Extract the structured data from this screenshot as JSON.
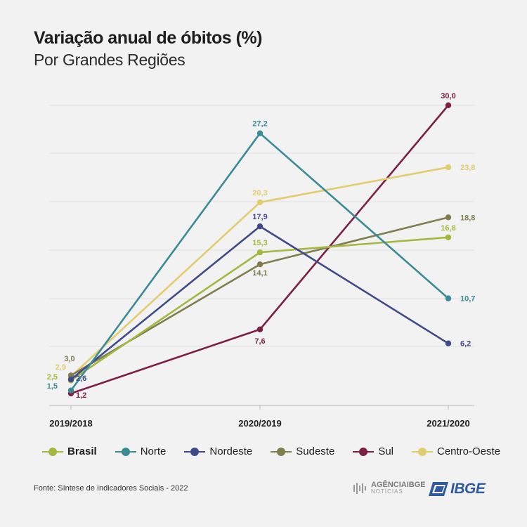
{
  "header": {
    "title": "Variação anual de óbitos (%)",
    "subtitle": "Por Grandes Regiões"
  },
  "chart_data": {
    "type": "line",
    "title": "Variação anual de óbitos (%)",
    "subtitle": "Por Grandes Regiões",
    "categories": [
      "2019/2018",
      "2020/2019",
      "2021/2020"
    ],
    "ylim": [
      0,
      31
    ],
    "grid": true,
    "legend_position": "bottom",
    "series": [
      {
        "name": "Brasil",
        "color": "#a3b83e",
        "values": [
          2.5,
          15.3,
          16.8
        ],
        "labels": [
          "2,5",
          "15,3",
          "16,8"
        ]
      },
      {
        "name": "Norte",
        "color": "#3a8b96",
        "values": [
          1.5,
          27.2,
          10.7
        ],
        "labels": [
          "1,5",
          "27,2",
          "10,7"
        ]
      },
      {
        "name": "Nordeste",
        "color": "#3f4a8a",
        "values": [
          2.6,
          17.9,
          6.2
        ],
        "labels": [
          "2,6",
          "17,9",
          "6,2"
        ]
      },
      {
        "name": "Sudeste",
        "color": "#807e4e",
        "values": [
          3.0,
          14.1,
          18.8
        ],
        "labels": [
          "3,0",
          "14,1",
          "18,8"
        ]
      },
      {
        "name": "Sul",
        "color": "#7d1f45",
        "values": [
          1.2,
          7.6,
          30.0
        ],
        "labels": [
          "1,2",
          "7,6",
          "30,0"
        ]
      },
      {
        "name": "Centro-Oeste",
        "color": "#e2cd6e",
        "values": [
          2.9,
          20.3,
          23.8
        ],
        "labels": [
          "2,9",
          "20,3",
          "23,8"
        ]
      }
    ]
  },
  "footer": {
    "source": "Fonte: Síntese de Indicadores Sociais - 2022",
    "agencia_line1_a": "AGÊNCIA",
    "agencia_line1_b": "IBGE",
    "agencia_line2": "NOTÍCIAS",
    "ibge_logo": "IBGE"
  }
}
